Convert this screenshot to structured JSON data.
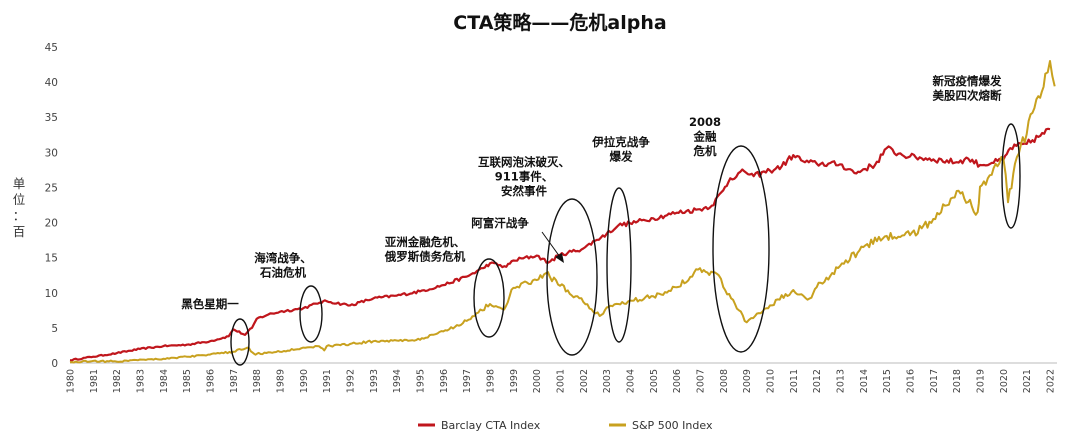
{
  "chart_data": {
    "type": "line",
    "title": "CTA策略——危机alpha",
    "ylabel": "单位：百",
    "xlabel": "",
    "ylim": [
      0,
      45
    ],
    "yticks": [
      0,
      5,
      10,
      15,
      20,
      25,
      30,
      35,
      40,
      45
    ],
    "xlim": [
      1980,
      2022.3
    ],
    "xticks": [
      1980,
      1981,
      1982,
      1983,
      1984,
      1985,
      1986,
      1987,
      1988,
      1989,
      1990,
      1991,
      1992,
      1993,
      1994,
      1995,
      1996,
      1997,
      1998,
      1999,
      2000,
      2001,
      2002,
      2003,
      2004,
      2005,
      2006,
      2007,
      2008,
      2009,
      2010,
      2011,
      2012,
      2013,
      2014,
      2015,
      2016,
      2017,
      2018,
      2019,
      2020,
      2021,
      2022
    ],
    "grid": false,
    "legend_position": "bottom",
    "series": [
      {
        "name": "Barclay CTA Index",
        "color": "#c0161c",
        "x": [
          1980,
          1981,
          1982,
          1983,
          1984,
          1985,
          1986,
          1986.8,
          1987,
          1987.5,
          1987.8,
          1988,
          1988.5,
          1989,
          1990,
          1990.7,
          1991,
          1992,
          1993,
          1994,
          1995,
          1996,
          1997,
          1997.7,
          1998,
          1998.7,
          1999,
          2000,
          2000.5,
          2001,
          2002,
          2002.5,
          2003,
          2003.5,
          2004,
          2005,
          2006,
          2007,
          2007.5,
          2008,
          2008.3,
          2008.9,
          2009.3,
          2010,
          2010.5,
          2011,
          2011.5,
          2012,
          2013,
          2013.7,
          2014,
          2014.5,
          2015,
          2015.5,
          2016,
          2017,
          2018,
          2018.5,
          2019,
          2019.5,
          2020,
          2020.3,
          2021,
          2021.5,
          2022
        ],
        "values": [
          0.4,
          0.9,
          1.4,
          2.0,
          2.4,
          2.6,
          3.1,
          3.8,
          4.8,
          4.0,
          5.0,
          6.3,
          6.9,
          7.3,
          7.8,
          8.6,
          8.8,
          8.2,
          9.2,
          9.6,
          10.2,
          11.1,
          12.3,
          13.5,
          14.2,
          13.7,
          14.6,
          15.3,
          14.3,
          15.4,
          16.3,
          17.4,
          18.4,
          19.6,
          19.9,
          20.6,
          21.4,
          21.9,
          22.4,
          24.6,
          26.3,
          27.3,
          26.6,
          27.4,
          28.0,
          29.6,
          28.6,
          28.4,
          28.3,
          27.0,
          27.6,
          28.2,
          30.6,
          29.8,
          29.4,
          29.0,
          28.6,
          29.1,
          28.2,
          28.5,
          28.9,
          30.6,
          31.2,
          32.2,
          33.3
        ]
      },
      {
        "name": "S&P 500 Index",
        "color": "#c8a11f",
        "x": [
          1980,
          1981,
          1982,
          1983,
          1984,
          1985,
          1986,
          1987,
          1987.6,
          1987.9,
          1988,
          1989,
          1990,
          1990.6,
          1990.9,
          1991,
          1992,
          1993,
          1994,
          1995,
          1996,
          1997,
          1998,
          1998.6,
          1999,
          2000,
          2000.4,
          2001,
          2002,
          2002.7,
          2003,
          2004,
          2005,
          2006,
          2007,
          2007.8,
          2008,
          2008.5,
          2009,
          2009.2,
          2010,
          2011,
          2011.7,
          2012,
          2013,
          2014,
          2015,
          2016,
          2017,
          2018,
          2018.9,
          2019,
          2019.5,
          2020,
          2020.2,
          2020.5,
          2021,
          2021.5,
          2021.8,
          2022,
          2022.2
        ],
        "values": [
          0.1,
          0.3,
          0.2,
          0.5,
          0.6,
          0.9,
          1.2,
          1.6,
          2.2,
          1.3,
          1.3,
          1.6,
          2.2,
          2.4,
          1.8,
          2.4,
          2.7,
          3.1,
          3.2,
          3.3,
          4.5,
          6.0,
          8.4,
          7.6,
          10.7,
          11.8,
          12.8,
          11.0,
          8.7,
          6.7,
          7.9,
          8.9,
          9.5,
          10.8,
          13.5,
          12.5,
          10.8,
          8.4,
          5.8,
          6.4,
          8.2,
          10.4,
          9.2,
          10.8,
          13.8,
          16.5,
          18.1,
          18.2,
          20.5,
          24.5,
          21.5,
          25.1,
          26.8,
          29.2,
          22.9,
          28.4,
          32.6,
          38.0,
          41.2,
          43.0,
          39.4
        ]
      }
    ],
    "annotations": [
      {
        "lines": [
          "黑色星期一"
        ],
        "year": 1987.8
      },
      {
        "lines": [
          "海湾战争、",
          "石油危机"
        ],
        "year": 1990.5
      },
      {
        "lines": [
          "亚洲金融危机、",
          "俄罗斯债务危机"
        ],
        "year": 1998.3
      },
      {
        "lines": [
          "阿富汗战争"
        ],
        "year": 2001.8
      },
      {
        "lines": [
          "互联网泡沫破灭、",
          "911事件、",
          "安然事件"
        ],
        "year": 2001.5
      },
      {
        "lines": [
          "伊拉克战争",
          "爆发"
        ],
        "year": 2003.5
      },
      {
        "lines": [
          "2008",
          "金融",
          "危机"
        ],
        "year": 2008.3
      },
      {
        "lines": [
          "新冠疫情爆发",
          "美股四次熔断"
        ],
        "year": 2020.3
      }
    ]
  }
}
